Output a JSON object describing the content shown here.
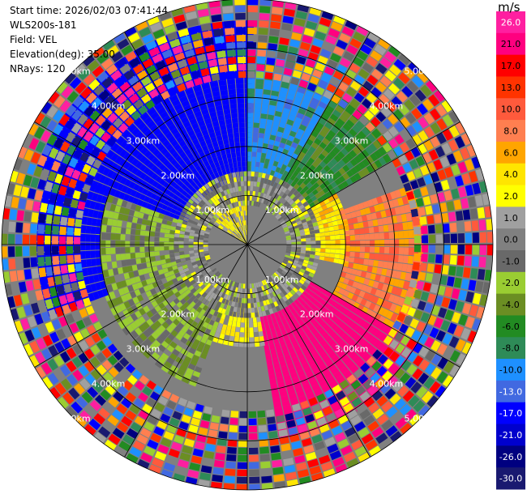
{
  "header": {
    "start_time": "Start time: 2026/02/03 07:41:44",
    "instrument": "WLS200s-181",
    "field": "Field: VEL",
    "elevation": "Elevation(deg): 35.00",
    "nrays": "NRays: 120"
  },
  "colorbar": {
    "unit": "m/s",
    "levels": [
      {
        "label": "26.0",
        "color": "#ff1fa0"
      },
      {
        "label": "21.0",
        "color": "#ff007f"
      },
      {
        "label": "17.0",
        "color": "#ff0000"
      },
      {
        "label": "13.0",
        "color": "#ff3300"
      },
      {
        "label": "10.0",
        "color": "#ff5a3c"
      },
      {
        "label": "8.0",
        "color": "#ff7f50"
      },
      {
        "label": "6.0",
        "color": "#ffa500"
      },
      {
        "label": "4.0",
        "color": "#ffe500"
      },
      {
        "label": "2.0",
        "color": "#ffff00"
      },
      {
        "label": "1.0",
        "color": "#a0a0a0"
      },
      {
        "label": "0.0",
        "color": "#808080"
      },
      {
        "label": "-1.0",
        "color": "#696969"
      },
      {
        "label": "-2.0",
        "color": "#9acd32"
      },
      {
        "label": "-4.0",
        "color": "#6b8e23"
      },
      {
        "label": "-6.0",
        "color": "#228b22"
      },
      {
        "label": "-8.0",
        "color": "#2e8b57"
      },
      {
        "label": "-10.0",
        "color": "#1e90ff"
      },
      {
        "label": "-13.0",
        "color": "#4169e1"
      },
      {
        "label": "-17.0",
        "color": "#0000ff"
      },
      {
        "label": "-21.0",
        "color": "#0000cd"
      },
      {
        "label": "-26.0",
        "color": "#000080"
      },
      {
        "label": "-30.0",
        "color": "#191970"
      }
    ]
  },
  "chart_data": {
    "type": "heatmap",
    "projection": "polar-ppi",
    "field": "VEL",
    "units": "m/s",
    "elevation_deg": 35.0,
    "n_rays": 120,
    "range_rings_km": [
      1.0,
      2.0,
      3.0,
      4.0,
      5.0
    ],
    "range_ring_labels": [
      "1.00km",
      "2.00km",
      "3.00km",
      "4.00km",
      "5.00km"
    ],
    "radial_spokes_deg": [
      0,
      30,
      60,
      90,
      120,
      150,
      180,
      210,
      240,
      270,
      300,
      330
    ],
    "max_range_km": 5.0,
    "vmin": -30.0,
    "vmax": 26.0,
    "sectors": [
      {
        "azimuth_from": 290,
        "azimuth_to": 360,
        "range_from_km": 1.3,
        "range_to_km": 4.5,
        "velocity": -17.0
      },
      {
        "azimuth_from": 0,
        "azimuth_to": 30,
        "range_from_km": 1.3,
        "range_to_km": 4.0,
        "velocity": -10.0
      },
      {
        "azimuth_from": 30,
        "azimuth_to": 60,
        "range_from_km": 1.5,
        "range_to_km": 3.5,
        "velocity": -6.0
      },
      {
        "azimuth_from": 60,
        "azimuth_to": 100,
        "range_from_km": 1.0,
        "range_to_km": 2.0,
        "velocity": 4.0
      },
      {
        "azimuth_from": 70,
        "azimuth_to": 120,
        "range_from_km": 2.0,
        "range_to_km": 3.5,
        "velocity": 8.0
      },
      {
        "azimuth_from": 120,
        "azimuth_to": 170,
        "range_from_km": 1.5,
        "range_to_km": 4.0,
        "velocity": 21.0
      },
      {
        "azimuth_from": 170,
        "azimuth_to": 210,
        "range_from_km": 1.0,
        "range_to_km": 2.0,
        "velocity": 2.0
      },
      {
        "azimuth_from": 200,
        "azimuth_to": 290,
        "range_from_km": 1.3,
        "range_to_km": 3.0,
        "velocity": -2.0
      },
      {
        "azimuth_from": 250,
        "azimuth_to": 290,
        "range_from_km": 3.0,
        "range_to_km": 4.2,
        "velocity": -17.0
      },
      {
        "azimuth_from": 300,
        "azimuth_to": 360,
        "range_from_km": 0.0,
        "range_to_km": 1.0,
        "velocity": 2.0
      },
      {
        "azimuth_from": 0,
        "azimuth_to": 360,
        "range_from_km": 0.8,
        "range_to_km": 1.4,
        "velocity": 0.0
      },
      {
        "azimuth_from": 0,
        "azimuth_to": 360,
        "range_from_km": 4.3,
        "range_to_km": 5.0,
        "velocity": null
      }
    ]
  }
}
